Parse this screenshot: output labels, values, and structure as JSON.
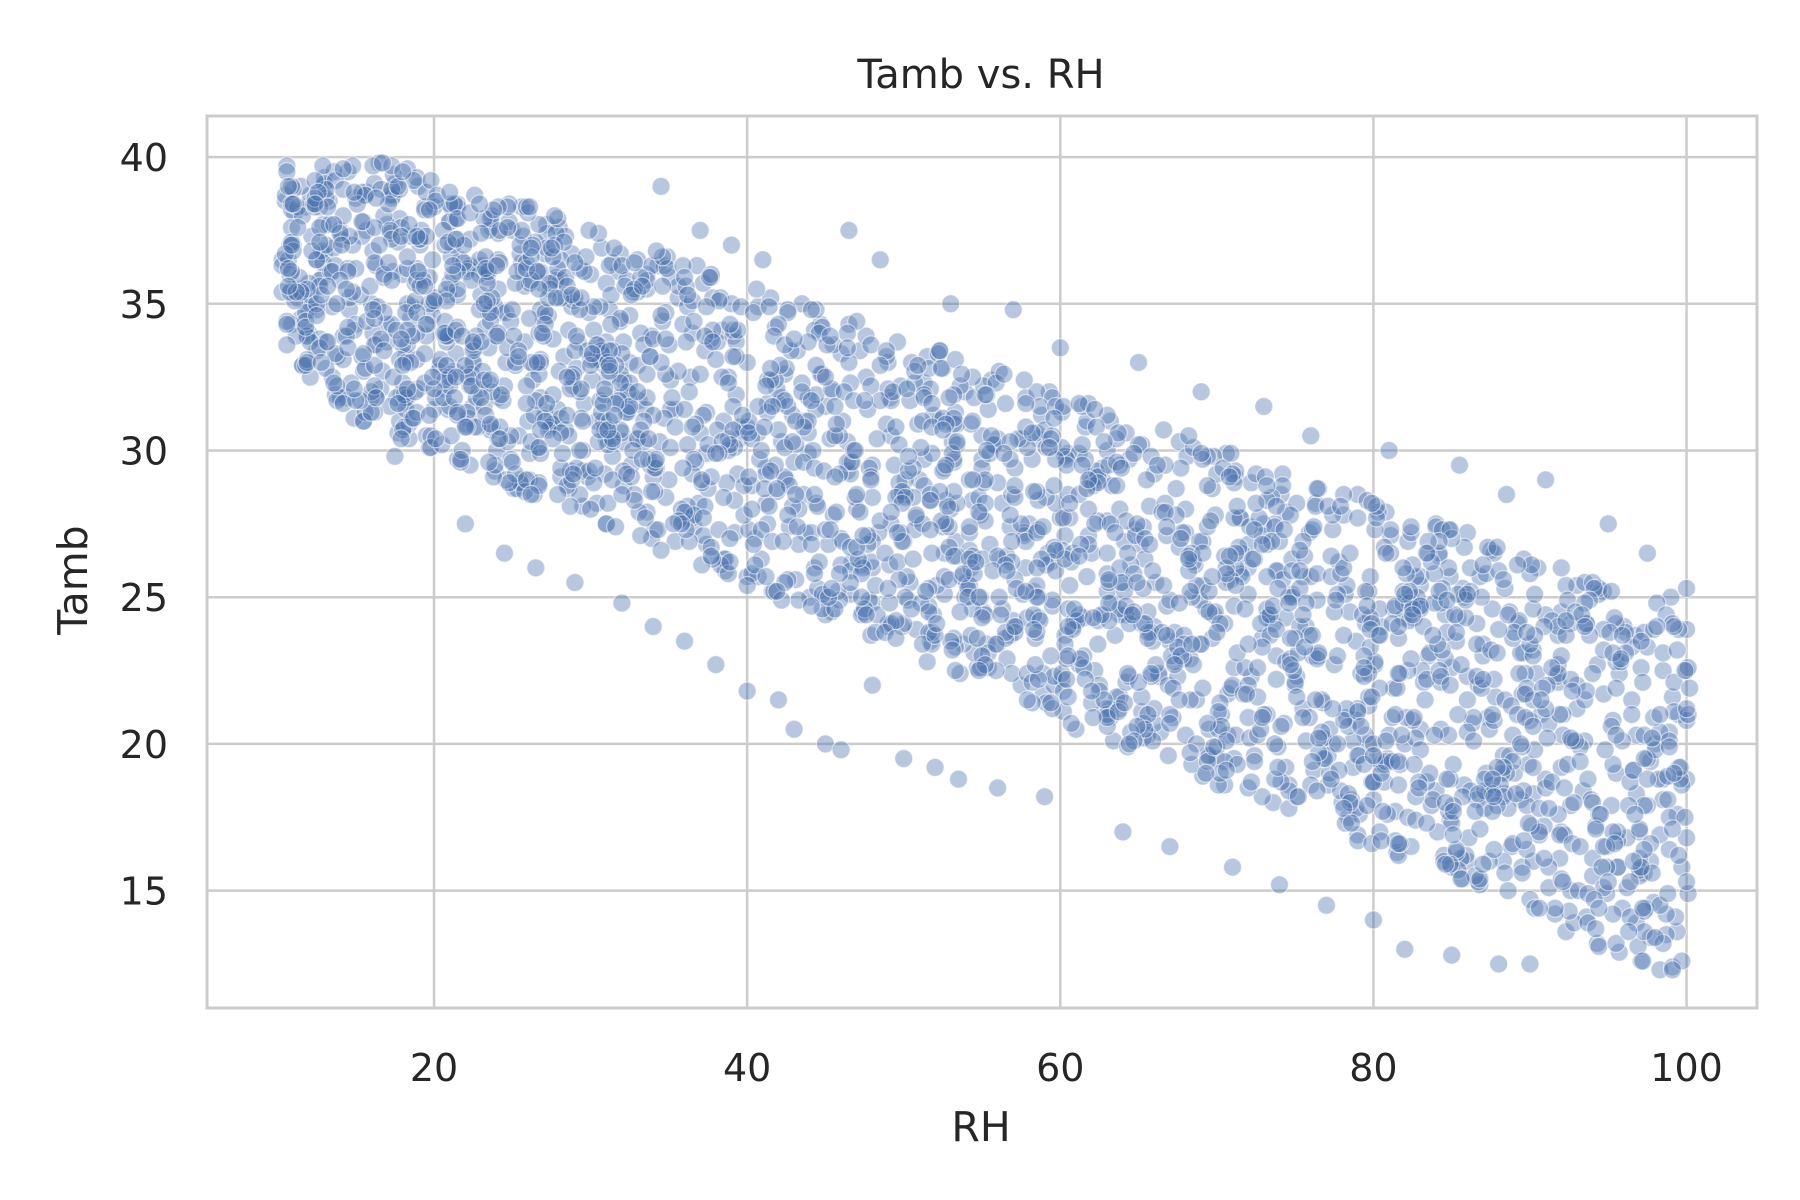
{
  "chart_data": {
    "type": "scatter",
    "title": "Tamb vs. RH",
    "xlabel": "RH",
    "ylabel": "Tamb",
    "xlim": [
      5.5,
      104.5
    ],
    "ylim": [
      11,
      41.4
    ],
    "xticks": [
      20,
      40,
      60,
      80,
      100
    ],
    "yticks": [
      15,
      20,
      25,
      30,
      35,
      40
    ],
    "grid": true,
    "legend": "none",
    "point_color": "#4c72b0",
    "point_edge_color": "#ffffff",
    "point_alpha": 0.4,
    "series": [
      {
        "values_description_free": true,
        "points": [
          [
            10.5,
            38.5
          ],
          [
            11,
            37
          ],
          [
            11.5,
            35.5
          ],
          [
            12,
            34
          ],
          [
            12.5,
            36.5
          ],
          [
            13,
            39
          ],
          [
            13.5,
            32.5
          ],
          [
            14,
            37.5
          ],
          [
            14.5,
            39.5
          ],
          [
            15,
            38.6
          ],
          [
            15.5,
            31
          ],
          [
            16,
            35
          ],
          [
            16.5,
            39.8
          ],
          [
            17,
            34.3
          ],
          [
            17.5,
            29.8
          ],
          [
            18,
            36
          ],
          [
            19,
            39
          ],
          [
            19.5,
            30.5
          ],
          [
            20,
            35
          ],
          [
            21,
            37.8
          ],
          [
            22,
            27.5
          ],
          [
            22.5,
            33
          ],
          [
            23,
            36.3
          ],
          [
            24,
            30
          ],
          [
            24.5,
            26.5
          ],
          [
            25,
            37.5
          ],
          [
            26,
            31
          ],
          [
            26.5,
            26
          ],
          [
            27,
            34.5
          ],
          [
            28,
            37.6
          ],
          [
            29,
            25.5
          ],
          [
            29.5,
            30
          ],
          [
            30,
            36
          ],
          [
            31,
            27.5
          ],
          [
            32,
            24.8
          ],
          [
            32.5,
            33
          ],
          [
            33,
            36.5
          ],
          [
            34,
            24
          ],
          [
            34.5,
            39
          ],
          [
            35,
            29
          ],
          [
            36,
            23.5
          ],
          [
            36.5,
            34
          ],
          [
            37,
            37.5
          ],
          [
            38,
            22.7
          ],
          [
            38.5,
            31
          ],
          [
            39,
            37
          ],
          [
            40,
            21.8
          ],
          [
            40.5,
            27
          ],
          [
            41,
            36.5
          ],
          [
            42,
            21.5
          ],
          [
            42.5,
            29
          ],
          [
            43,
            20.5
          ],
          [
            43.5,
            35
          ],
          [
            44,
            25
          ],
          [
            45,
            20
          ],
          [
            45.5,
            32
          ],
          [
            46,
            19.8
          ],
          [
            46.5,
            37.5
          ],
          [
            47,
            28
          ],
          [
            48,
            22
          ],
          [
            48.5,
            36.5
          ],
          [
            49,
            24
          ],
          [
            50,
            19.5
          ],
          [
            50.5,
            33
          ],
          [
            51,
            29
          ],
          [
            52,
            19.2
          ],
          [
            53,
            35
          ],
          [
            53.5,
            18.8
          ],
          [
            54,
            25.5
          ],
          [
            55,
            30.5
          ],
          [
            56,
            18.5
          ],
          [
            57,
            34.8
          ],
          [
            57.5,
            22
          ],
          [
            58,
            27.5
          ],
          [
            59,
            18.2
          ],
          [
            60,
            33.5
          ],
          [
            61,
            20.5
          ],
          [
            62,
            26.5
          ],
          [
            63,
            30
          ],
          [
            64,
            17
          ],
          [
            65,
            33
          ],
          [
            66,
            24
          ],
          [
            67,
            16.5
          ],
          [
            68,
            28
          ],
          [
            69,
            32
          ],
          [
            70,
            19.5
          ],
          [
            71,
            15.8
          ],
          [
            72,
            26
          ],
          [
            73,
            31.5
          ],
          [
            74,
            15.2
          ],
          [
            75,
            22
          ],
          [
            76,
            30.5
          ],
          [
            77,
            14.5
          ],
          [
            78,
            18
          ],
          [
            79,
            28.5
          ],
          [
            80,
            14
          ],
          [
            80.5,
            24
          ],
          [
            81,
            30
          ],
          [
            82,
            13
          ],
          [
            83,
            20.5
          ],
          [
            84,
            27.5
          ],
          [
            85,
            12.8
          ],
          [
            85.5,
            29.5
          ],
          [
            86,
            16
          ],
          [
            87,
            23
          ],
          [
            88,
            12.5
          ],
          [
            88.5,
            28.5
          ],
          [
            89,
            19
          ],
          [
            90,
            12.5
          ],
          [
            90.5,
            26
          ],
          [
            91,
            29
          ],
          [
            92,
            17
          ],
          [
            93,
            22
          ],
          [
            94,
            15.5
          ],
          [
            95,
            27.5
          ],
          [
            95.5,
            19
          ],
          [
            96,
            24
          ],
          [
            97,
            17
          ],
          [
            97.5,
            26.5
          ],
          [
            98,
            20
          ],
          [
            98.5,
            22.5
          ],
          [
            99,
            25
          ],
          [
            99.5,
            21
          ],
          [
            100,
            23.9
          ],
          [
            100,
            20.8
          ],
          [
            100,
            25.3
          ],
          [
            100,
            22.5
          ]
        ]
      }
    ]
  }
}
